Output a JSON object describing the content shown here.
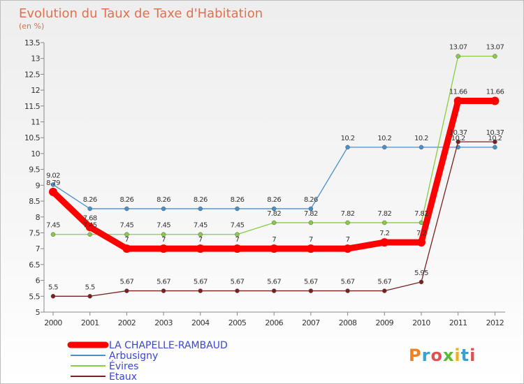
{
  "chart_data": {
    "type": "line",
    "title": "Evolution du Taux de Taxe d'Habitation",
    "subtitle": "(en %)",
    "x": [
      "2000",
      "2001",
      "2002",
      "2003",
      "2004",
      "2005",
      "2006",
      "2007",
      "2008",
      "2009",
      "2010",
      "2011",
      "2012"
    ],
    "ylim": [
      5,
      13.5
    ],
    "yticks": [
      "5",
      "5.5",
      "6",
      "6.5",
      "7",
      "7.5",
      "8",
      "8.5",
      "9",
      "9.5",
      "10",
      "10.5",
      "11",
      "11.5",
      "12",
      "12.5",
      "13",
      "13.5"
    ],
    "grid": false,
    "legend_position": "bottom-left",
    "series": [
      {
        "name": "LA CHAPELLE-RAMBAUD",
        "color": "#ff0000",
        "values": [
          8.79,
          7.68,
          7,
          7,
          7,
          7,
          7,
          7,
          7,
          7.2,
          7.2,
          11.66,
          11.66
        ],
        "labels": [
          "8.79",
          "7.68",
          "7",
          "7",
          "7",
          "7",
          "7",
          "7",
          "7",
          "7.2",
          "7.2",
          "11.66",
          "11.66"
        ]
      },
      {
        "name": "Arbusigny",
        "color": "#4a8fc8",
        "values": [
          9.02,
          8.26,
          8.26,
          8.26,
          8.26,
          8.26,
          8.26,
          8.26,
          10.2,
          10.2,
          10.2,
          10.2,
          10.2
        ],
        "labels": [
          "9.02",
          "8.26",
          "8.26",
          "8.26",
          "8.26",
          "8.26",
          "8.26",
          "8.26",
          "10.2",
          "10.2",
          "10.2",
          "10.2",
          "10.2"
        ]
      },
      {
        "name": "Évires",
        "color": "#88cc44",
        "values": [
          7.45,
          7.45,
          7.45,
          7.45,
          7.45,
          7.45,
          7.82,
          7.82,
          7.82,
          7.82,
          7.82,
          13.07,
          13.07
        ],
        "labels": [
          "7.45",
          "7.45",
          "7.45",
          "7.45",
          "7.45",
          "7.45",
          "7.82",
          "7.82",
          "7.82",
          "7.82",
          "7.82",
          "13.07",
          "13.07"
        ]
      },
      {
        "name": "Etaux",
        "color": "#7a2020",
        "values": [
          5.5,
          5.5,
          5.67,
          5.67,
          5.67,
          5.67,
          5.67,
          5.67,
          5.67,
          5.67,
          5.95,
          10.37,
          10.37
        ],
        "labels": [
          "5.5",
          "5.5",
          "5.67",
          "5.67",
          "5.67",
          "5.67",
          "5.67",
          "5.67",
          "5.67",
          "5.67",
          "5.95",
          "10.37",
          "10.37"
        ]
      }
    ]
  },
  "logo": {
    "text": "Proxiti"
  }
}
